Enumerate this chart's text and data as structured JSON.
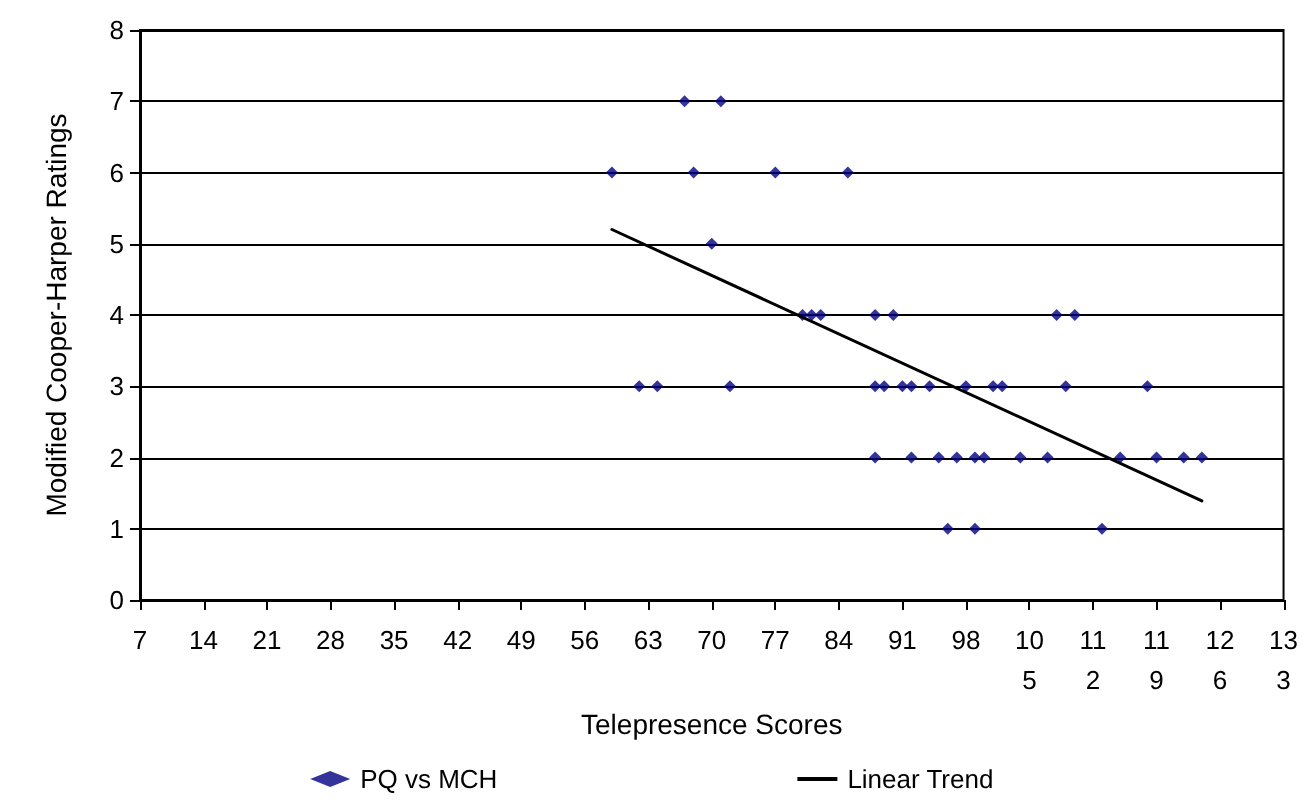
{
  "chart_data": {
    "type": "scatter",
    "xlabel": "Telepresence Scores",
    "ylabel": "Modified Cooper-Harper Ratings",
    "xlim": [
      7,
      133
    ],
    "xticks": [
      7,
      14,
      21,
      28,
      35,
      42,
      49,
      56,
      63,
      70,
      77,
      84,
      91,
      98,
      105,
      112,
      119,
      126,
      133
    ],
    "ylim": [
      0,
      8
    ],
    "yticks": [
      0,
      1,
      2,
      3,
      4,
      5,
      6,
      7,
      8
    ],
    "grid": "y",
    "legend": "bottom",
    "marker": "diamond",
    "series": [
      {
        "name": "PQ vs MCH",
        "color": "#000080",
        "x": [
          67,
          71,
          59,
          68,
          77,
          85,
          70,
          80,
          81,
          82,
          88,
          90,
          108,
          110,
          62,
          64,
          72,
          88,
          89,
          91,
          92,
          94,
          98,
          101,
          102,
          109,
          118,
          88,
          92,
          95,
          97,
          99,
          100,
          104,
          107,
          115,
          119,
          122,
          124,
          96,
          99,
          113
        ],
        "values": [
          7,
          7,
          6,
          6,
          6,
          6,
          5,
          4,
          4,
          4,
          4,
          4,
          4,
          4,
          3,
          3,
          3,
          3,
          3,
          3,
          3,
          3,
          3,
          3,
          3,
          3,
          3,
          2,
          2,
          2,
          2,
          2,
          2,
          2,
          2,
          2,
          2,
          2,
          2,
          1,
          1,
          1
        ]
      },
      {
        "name": "Linear Trend",
        "type": "line",
        "color": "#000000",
        "marker": "none",
        "x": [
          59,
          124
        ],
        "values": [
          5.2,
          1.39
        ]
      }
    ]
  }
}
